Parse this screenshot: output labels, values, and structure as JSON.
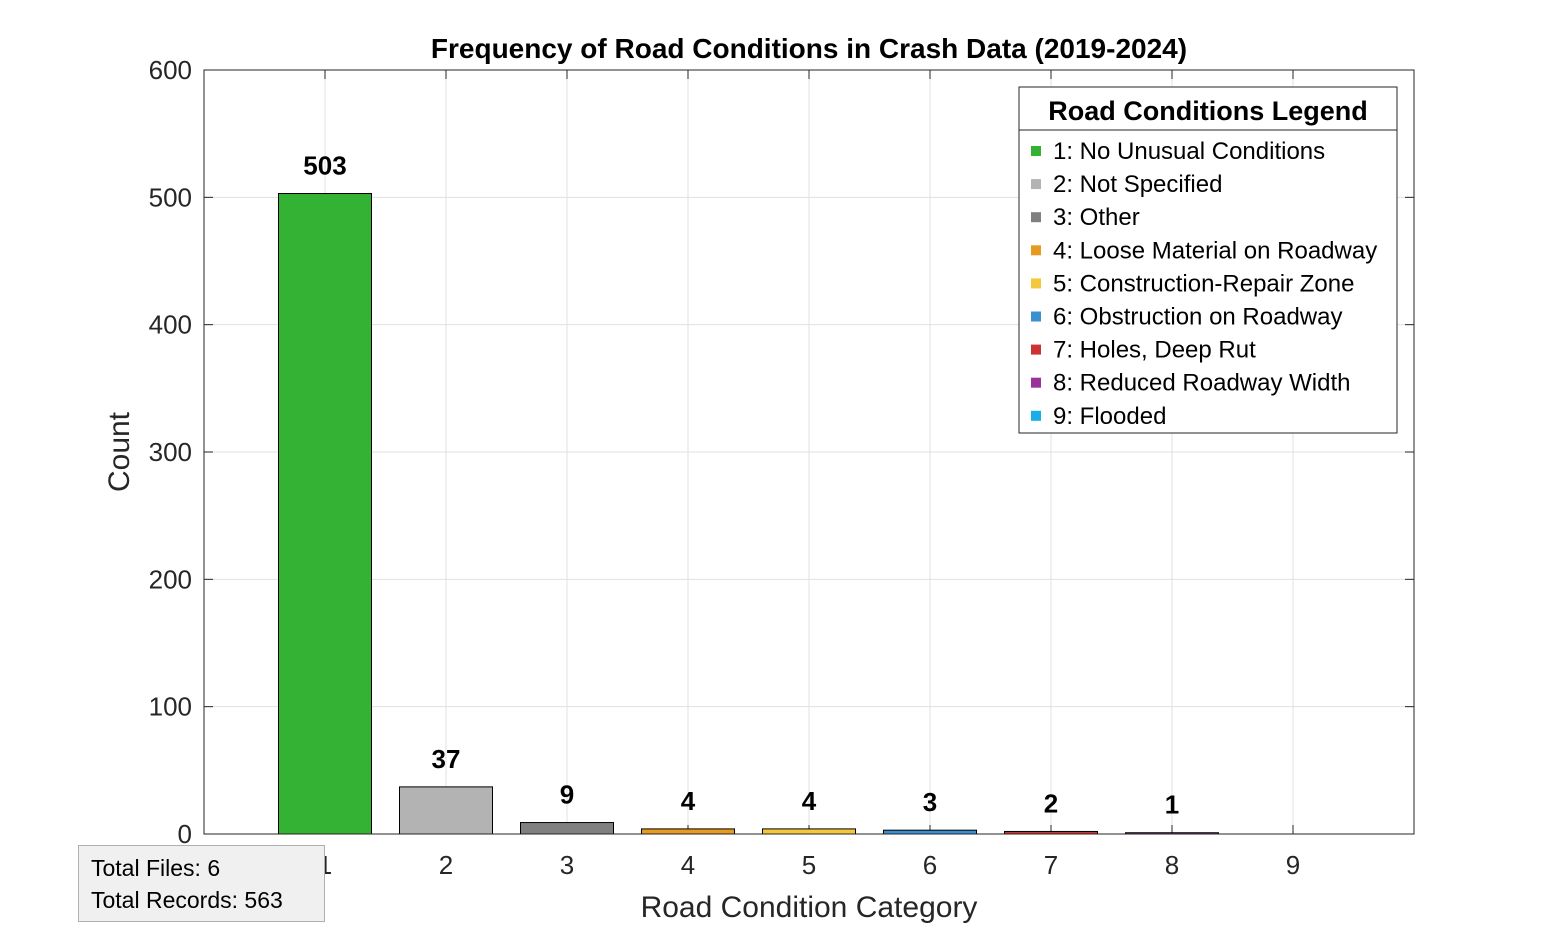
{
  "chart_data": {
    "type": "bar",
    "title": "Frequency of Road Conditions in Crash Data (2019-2024)",
    "xlabel": "Road Condition Category",
    "ylabel": "Count",
    "ylim": [
      0,
      600
    ],
    "yticks": [
      0,
      100,
      200,
      300,
      400,
      500,
      600
    ],
    "xlim": [
      0,
      10
    ],
    "grid": true,
    "categories": [
      "1",
      "2",
      "3",
      "4",
      "5",
      "6",
      "7",
      "8",
      "9"
    ],
    "values": [
      503,
      37,
      9,
      4,
      4,
      3,
      2,
      1,
      0
    ],
    "data_labels": [
      "503",
      "37",
      "9",
      "4",
      "4",
      "3",
      "2",
      "1",
      ""
    ],
    "colors": [
      "#33b233",
      "#b3b3b3",
      "#808080",
      "#e69a1f",
      "#f5c83c",
      "#3a8fd0",
      "#cc3333",
      "#9a3399",
      "#1aaee6"
    ],
    "legend": {
      "title": "Road Conditions Legend",
      "position": "top-right",
      "entries": [
        "1: No Unusual Conditions",
        "2: Not Specified",
        "3: Other",
        "4: Loose Material on Roadway",
        "5: Construction-Repair Zone",
        "6: Obstruction on Roadway",
        "7: Holes, Deep Rut",
        "8: Reduced Roadway Width",
        "9: Flooded"
      ]
    }
  },
  "info": {
    "total_files": "Total Files: 6",
    "total_records": "Total Records: 563"
  }
}
